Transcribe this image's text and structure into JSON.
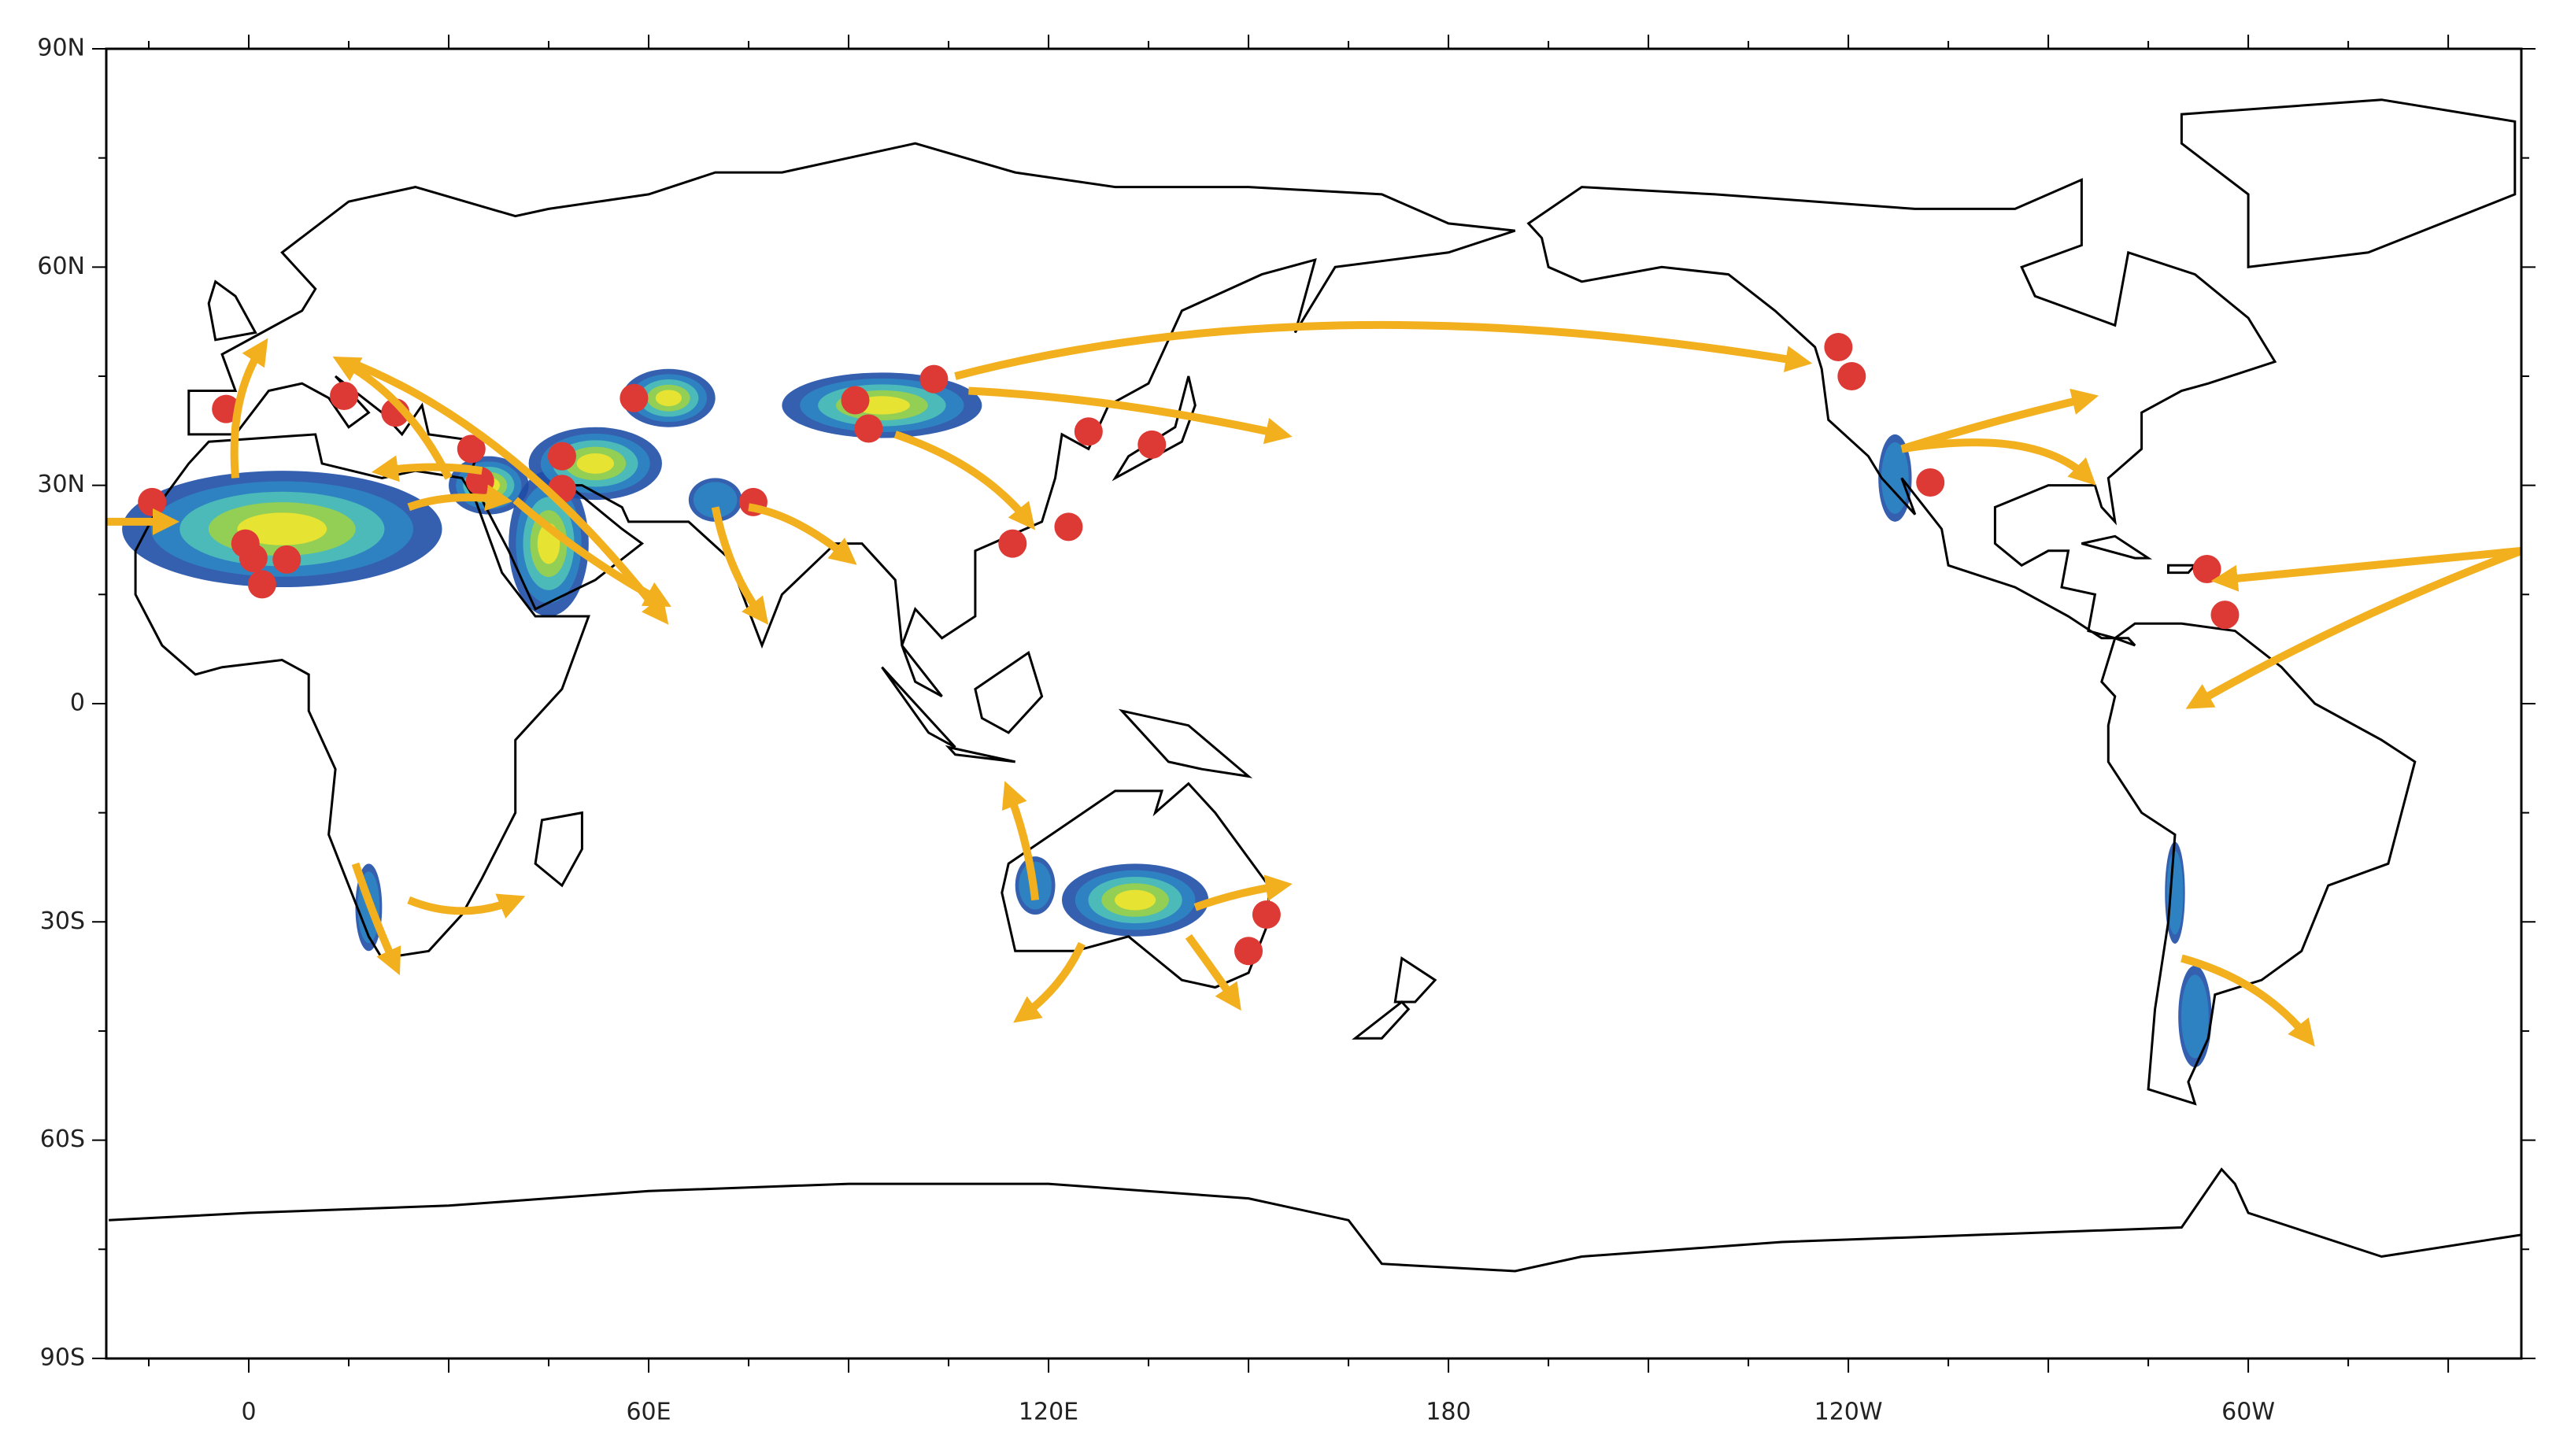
{
  "axes": {
    "y_labels": [
      "90N",
      "60N",
      "30N",
      "0",
      "30S",
      "60S",
      "90S"
    ],
    "x_labels": [
      "0",
      "60E",
      "120E",
      "180",
      "120W",
      "60W"
    ]
  }
}
